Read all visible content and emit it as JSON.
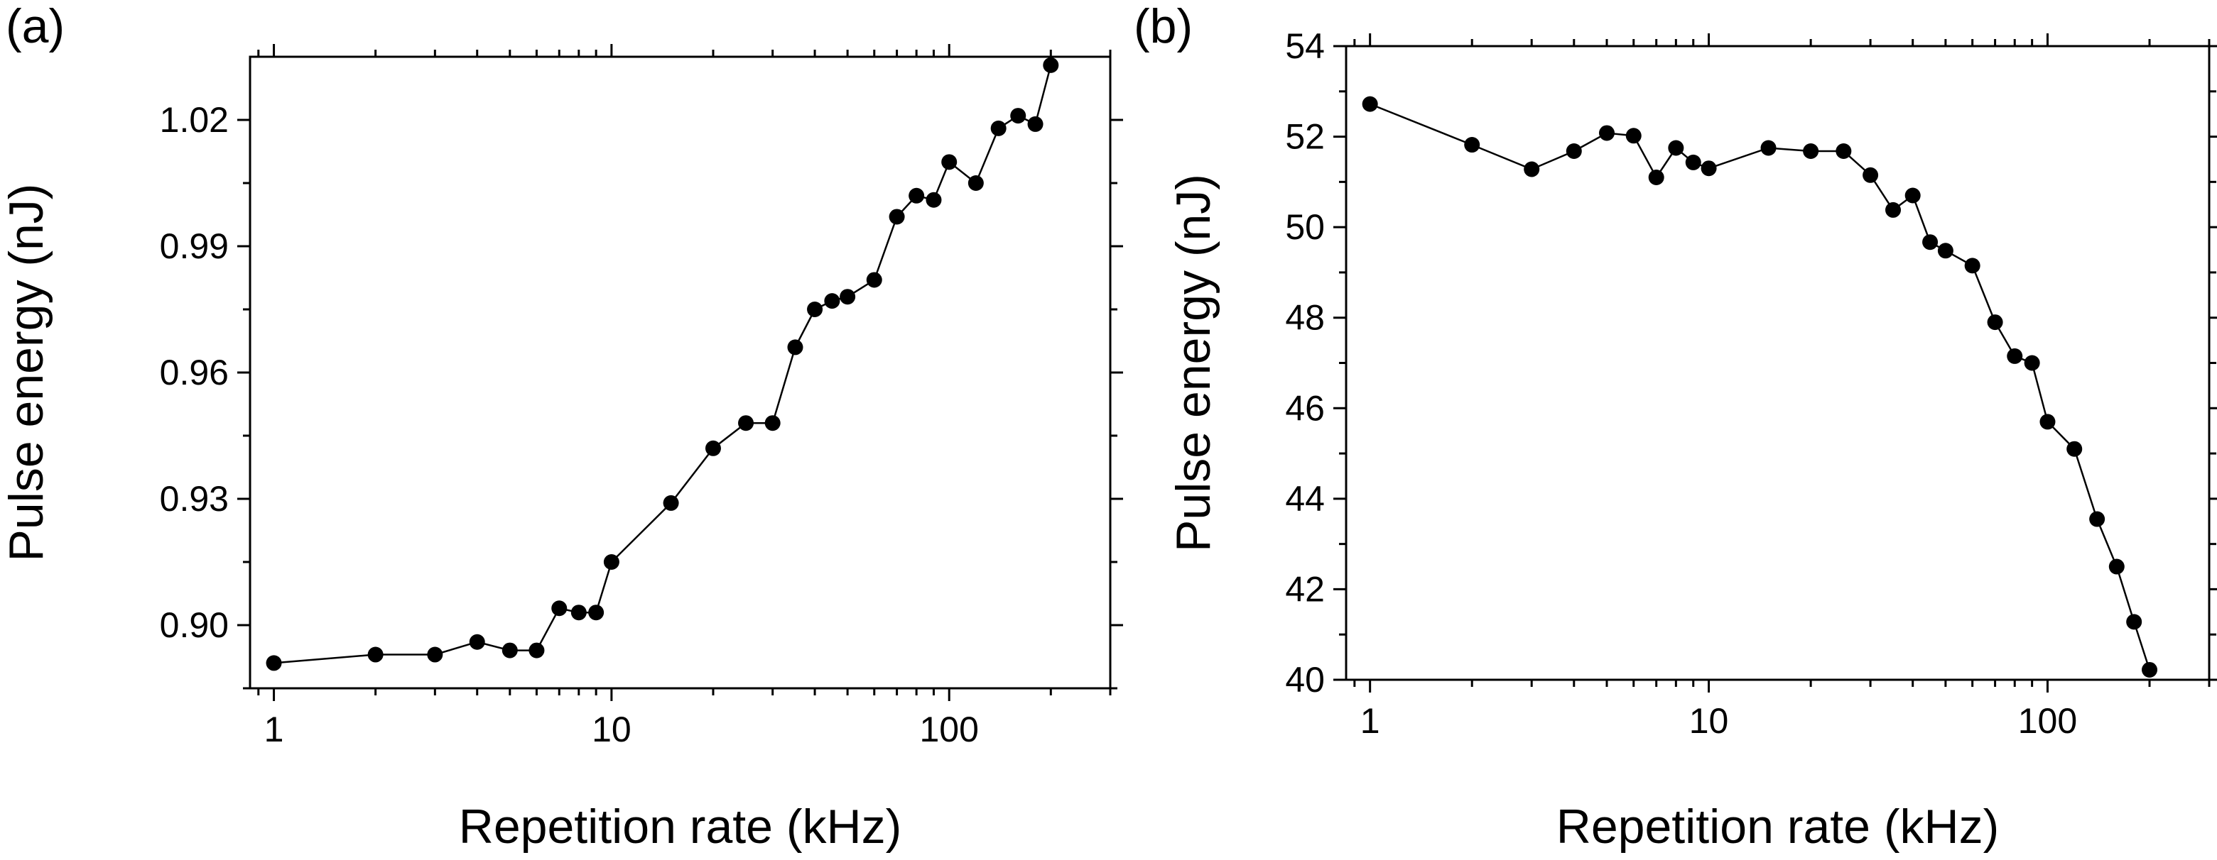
{
  "chart_data": [
    {
      "type": "line",
      "panel_label": "(a)",
      "xlabel": "Repetition rate (kHz)",
      "ylabel": "Pulse energy (nJ)",
      "xscale": "log",
      "xlim": [
        0.85,
        300
      ],
      "ylim": [
        0.885,
        1.035
      ],
      "xticks": [
        1,
        10,
        100
      ],
      "xtick_labels": [
        "1",
        "10",
        "100"
      ],
      "yticks": [
        0.9,
        0.93,
        0.96,
        0.99,
        1.02
      ],
      "ytick_labels": [
        "0.90",
        "0.93",
        "0.96",
        "0.99",
        "1.02"
      ],
      "series": [
        {
          "name": "Pulse energy",
          "x": [
            1,
            2,
            3,
            4,
            5,
            6,
            7,
            8,
            9,
            10,
            15,
            20,
            25,
            30,
            35,
            40,
            45,
            50,
            60,
            70,
            80,
            90,
            100,
            120,
            140,
            160,
            180,
            200
          ],
          "y": [
            0.891,
            0.893,
            0.893,
            0.896,
            0.894,
            0.894,
            0.904,
            0.903,
            0.903,
            0.915,
            0.929,
            0.942,
            0.948,
            0.948,
            0.966,
            0.975,
            0.977,
            0.978,
            0.982,
            0.997,
            1.002,
            1.001,
            1.01,
            1.005,
            1.018,
            1.021,
            1.019,
            1.033
          ]
        }
      ]
    },
    {
      "type": "line",
      "panel_label": "(b)",
      "xlabel": "Repetition rate (kHz)",
      "ylabel": "Pulse energy (nJ)",
      "xscale": "log",
      "xlim": [
        0.85,
        300
      ],
      "ylim": [
        40,
        54
      ],
      "xticks": [
        1,
        10,
        100
      ],
      "xtick_labels": [
        "1",
        "10",
        "100"
      ],
      "yticks": [
        40,
        42,
        44,
        46,
        48,
        50,
        52,
        54
      ],
      "ytick_labels": [
        "40",
        "42",
        "44",
        "46",
        "48",
        "50",
        "52",
        "54"
      ],
      "series": [
        {
          "name": "Pulse energy",
          "x": [
            1,
            2,
            3,
            4,
            5,
            6,
            7,
            8,
            9,
            10,
            15,
            20,
            25,
            30,
            35,
            40,
            45,
            50,
            60,
            70,
            80,
            90,
            100,
            120,
            140,
            160,
            180,
            200
          ],
          "y": [
            52.72,
            51.82,
            51.28,
            51.68,
            52.08,
            52.02,
            51.1,
            51.75,
            51.43,
            51.3,
            51.75,
            51.68,
            51.68,
            51.15,
            50.38,
            50.7,
            49.67,
            49.48,
            49.15,
            47.9,
            47.15,
            47.0,
            45.7,
            45.1,
            43.55,
            42.5,
            41.28,
            40.22
          ]
        }
      ]
    }
  ]
}
